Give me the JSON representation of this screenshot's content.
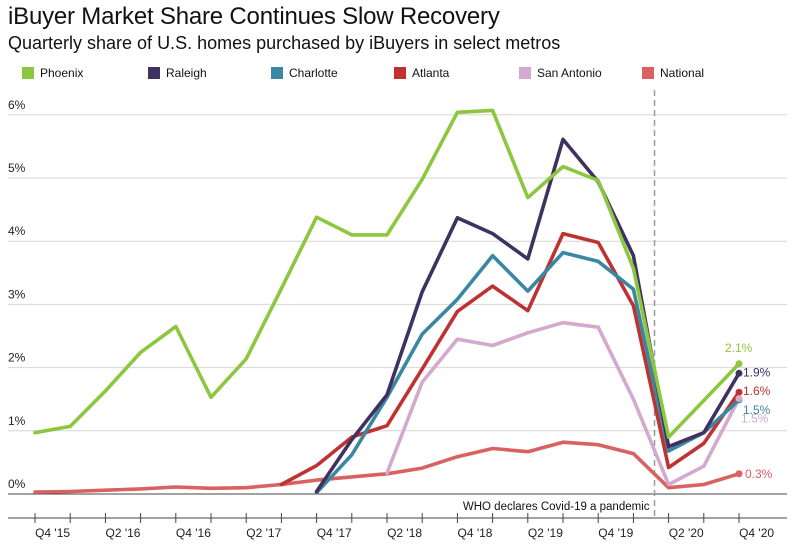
{
  "chart_data": {
    "type": "line",
    "title": "iBuyer Market Share Continues Slow Recovery",
    "subtitle": "Quarterly share of U.S. homes purchased by iBuyers in select metros",
    "x": [
      "Q4 '15",
      "Q1 '16",
      "Q2 '16",
      "Q3 '16",
      "Q4 '16",
      "Q1 '17",
      "Q2 '17",
      "Q3 '17",
      "Q4 '17",
      "Q1 '18",
      "Q2 '18",
      "Q3 '18",
      "Q4 '18",
      "Q1 '19",
      "Q2 '19",
      "Q3 '19",
      "Q4 '19",
      "Q1 '20",
      "Q2 '20",
      "Q3 '20",
      "Q4 '20"
    ],
    "x_tick_labels": [
      "Q4 '15",
      "Q2 '16",
      "Q4 '16",
      "Q2 '17",
      "Q4 '17",
      "Q2 '18",
      "Q4 '18",
      "Q2 '19",
      "Q4 '19",
      "Q2 '20",
      "Q4 '20"
    ],
    "y_tick_labels": [
      "0%",
      "1%",
      "2%",
      "3%",
      "4%",
      "5%",
      "6%"
    ],
    "ylim": [
      0,
      6.3
    ],
    "y_unit": "%",
    "grid": "horizontal",
    "legend_position": "top",
    "series": [
      {
        "name": "Phoenix",
        "color": "#8dc63f",
        "values": [
          0.97,
          1.07,
          1.63,
          2.24,
          2.65,
          1.53,
          2.14,
          3.25,
          4.38,
          4.1,
          4.1,
          4.98,
          6.04,
          6.07,
          4.69,
          5.18,
          4.96,
          3.57,
          0.9,
          1.48,
          2.06
        ]
      },
      {
        "name": "Raleigh",
        "color": "#3f3260",
        "values": [
          null,
          null,
          null,
          null,
          null,
          null,
          null,
          null,
          0.04,
          0.86,
          1.57,
          3.2,
          4.37,
          4.12,
          3.72,
          5.61,
          4.94,
          3.77,
          0.75,
          0.97,
          1.91
        ]
      },
      {
        "name": "Charlotte",
        "color": "#3a87a3",
        "values": [
          null,
          null,
          null,
          null,
          null,
          null,
          null,
          null,
          0.02,
          0.62,
          1.53,
          2.53,
          3.08,
          3.77,
          3.21,
          3.82,
          3.68,
          3.24,
          0.68,
          0.97,
          1.49
        ]
      },
      {
        "name": "Atlanta",
        "color": "#bf3232",
        "values": [
          null,
          null,
          null,
          null,
          null,
          null,
          null,
          0.15,
          0.45,
          0.9,
          1.08,
          1.98,
          2.89,
          3.29,
          2.9,
          4.12,
          3.98,
          2.98,
          0.42,
          0.8,
          1.61
        ]
      },
      {
        "name": "San Antonio",
        "color": "#d4a9cd",
        "values": [
          null,
          null,
          null,
          null,
          null,
          null,
          null,
          null,
          null,
          null,
          0.33,
          1.77,
          2.45,
          2.35,
          2.55,
          2.71,
          2.64,
          1.5,
          0.15,
          0.44,
          1.51
        ]
      },
      {
        "name": "National",
        "color": "#d96161",
        "values": [
          0.03,
          0.04,
          0.06,
          0.08,
          0.11,
          0.09,
          0.1,
          0.15,
          0.22,
          0.27,
          0.32,
          0.41,
          0.59,
          0.72,
          0.67,
          0.82,
          0.78,
          0.64,
          0.1,
          0.15,
          0.32
        ]
      }
    ],
    "end_labels": [
      {
        "series": "Phoenix",
        "text": "2.1%",
        "color": "#8dc63f"
      },
      {
        "series": "Raleigh",
        "text": "1.9%",
        "color": "#3f3260"
      },
      {
        "series": "Atlanta",
        "text": "1.6%",
        "color": "#bf3232"
      },
      {
        "series": "Charlotte",
        "text": "1.5%",
        "color": "#3a87a3"
      },
      {
        "series": "San Antonio",
        "text": "1.5%",
        "color": "#d4a9cd"
      },
      {
        "series": "National",
        "text": "0.3%",
        "color": "#d96161"
      }
    ],
    "annotation": {
      "text": "WHO declares Covid-19 a pandemic",
      "at": "Q1 '20"
    }
  }
}
